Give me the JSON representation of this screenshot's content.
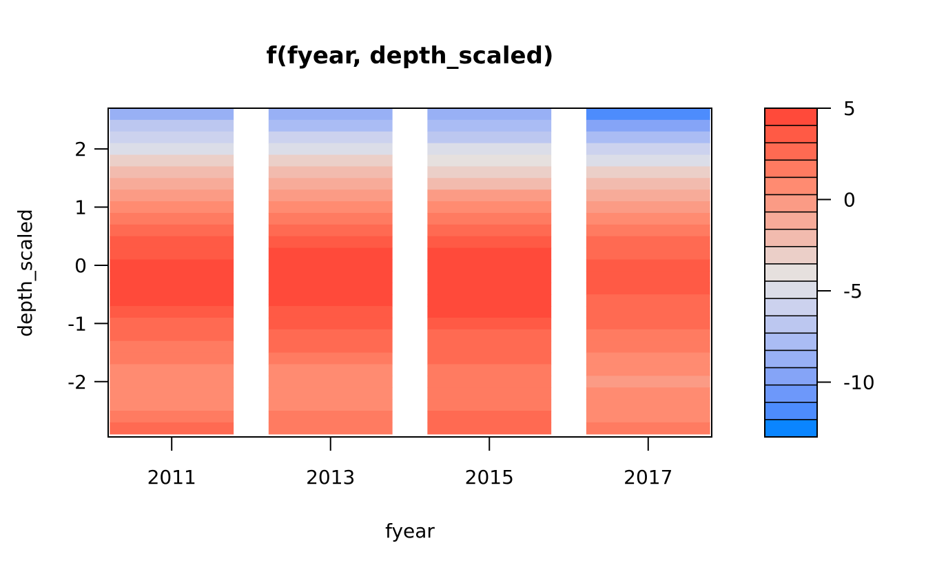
{
  "chart_data": {
    "type": "heatmap",
    "title": "f(fyear, depth_scaled)",
    "xlabel": "fyear",
    "ylabel": "depth_scaled",
    "x_categories": [
      2011,
      2013,
      2015,
      2017
    ],
    "x_tick_labels": [
      "2011",
      "2013",
      "2015",
      "2017"
    ],
    "xlim": [
      2010.2,
      2017.8
    ],
    "ylim": [
      -2.95,
      2.7
    ],
    "y_ticks": [
      -2,
      -1,
      0,
      1,
      2
    ],
    "y_tick_labels": [
      "-2",
      "-1",
      "0",
      "1",
      "2"
    ],
    "depth_grid": [
      2.6,
      2.4,
      2.2,
      2.0,
      1.8,
      1.6,
      1.4,
      1.2,
      1.0,
      0.8,
      0.6,
      0.4,
      0.2,
      0.0,
      -0.2,
      -0.4,
      -0.6,
      -0.8,
      -1.0,
      -1.2,
      -1.4,
      -1.6,
      -1.8,
      -2.0,
      -2.2,
      -2.4,
      -2.6,
      -2.8
    ],
    "series": [
      {
        "name": "2011",
        "values": [
          -8.5,
          -7,
          -5.5,
          -4.5,
          -3.5,
          -2.5,
          -1.5,
          0,
          1,
          2,
          2.5,
          3.5,
          4,
          4.5,
          4.8,
          4.6,
          4.2,
          3.5,
          3,
          2.5,
          2,
          1.5,
          1,
          0.5,
          0.8,
          1,
          1.8,
          2.2
        ]
      },
      {
        "name": "2013",
        "values": [
          -9,
          -7.5,
          -6,
          -4.5,
          -3.5,
          -2.5,
          -1.5,
          0,
          1,
          2,
          3,
          3.8,
          4.4,
          4.8,
          4.9,
          4.7,
          4.3,
          3.8,
          3.2,
          2.7,
          2.3,
          1.8,
          1.2,
          0.8,
          0.8,
          0.9,
          1.5,
          2
        ]
      },
      {
        "name": "2015",
        "values": [
          -9,
          -8,
          -6.5,
          -5,
          -3.8,
          -2.8,
          -1.8,
          -0.5,
          0.8,
          2,
          3,
          4,
          4.6,
          4.9,
          5,
          4.8,
          4.6,
          4.2,
          3.5,
          3,
          2.6,
          2.2,
          1.8,
          1.4,
          1.5,
          2,
          2.8,
          3
        ]
      },
      {
        "name": "2017",
        "values": [
          -12,
          -10,
          -8,
          -6,
          -4.5,
          -3,
          -2,
          -1,
          0,
          1,
          1.8,
          2.6,
          3,
          3.2,
          3.3,
          3.2,
          3,
          2.8,
          2.4,
          2,
          1.6,
          1.2,
          0.6,
          0,
          0.5,
          1,
          1.2,
          1.4
        ]
      }
    ],
    "colorbar": {
      "min": -13,
      "max": 5,
      "ticks": [
        5,
        0,
        -5,
        -10
      ],
      "tick_labels": [
        "5",
        "0",
        "-5",
        "-10"
      ],
      "colors": [
        "#ff4a3a",
        "#ff5a45",
        "#ff6a52",
        "#ff7b61",
        "#ff8b71",
        "#fb9b85",
        "#f7ab99",
        "#f2bbae",
        "#ebcfc8",
        "#e6e0de",
        "#dbdde8",
        "#ccd2ee",
        "#bcc7f0",
        "#aabcf4",
        "#98b0f5",
        "#85a4f7",
        "#6d98fa",
        "#4d8cfd",
        "#0a85ff"
      ]
    }
  }
}
